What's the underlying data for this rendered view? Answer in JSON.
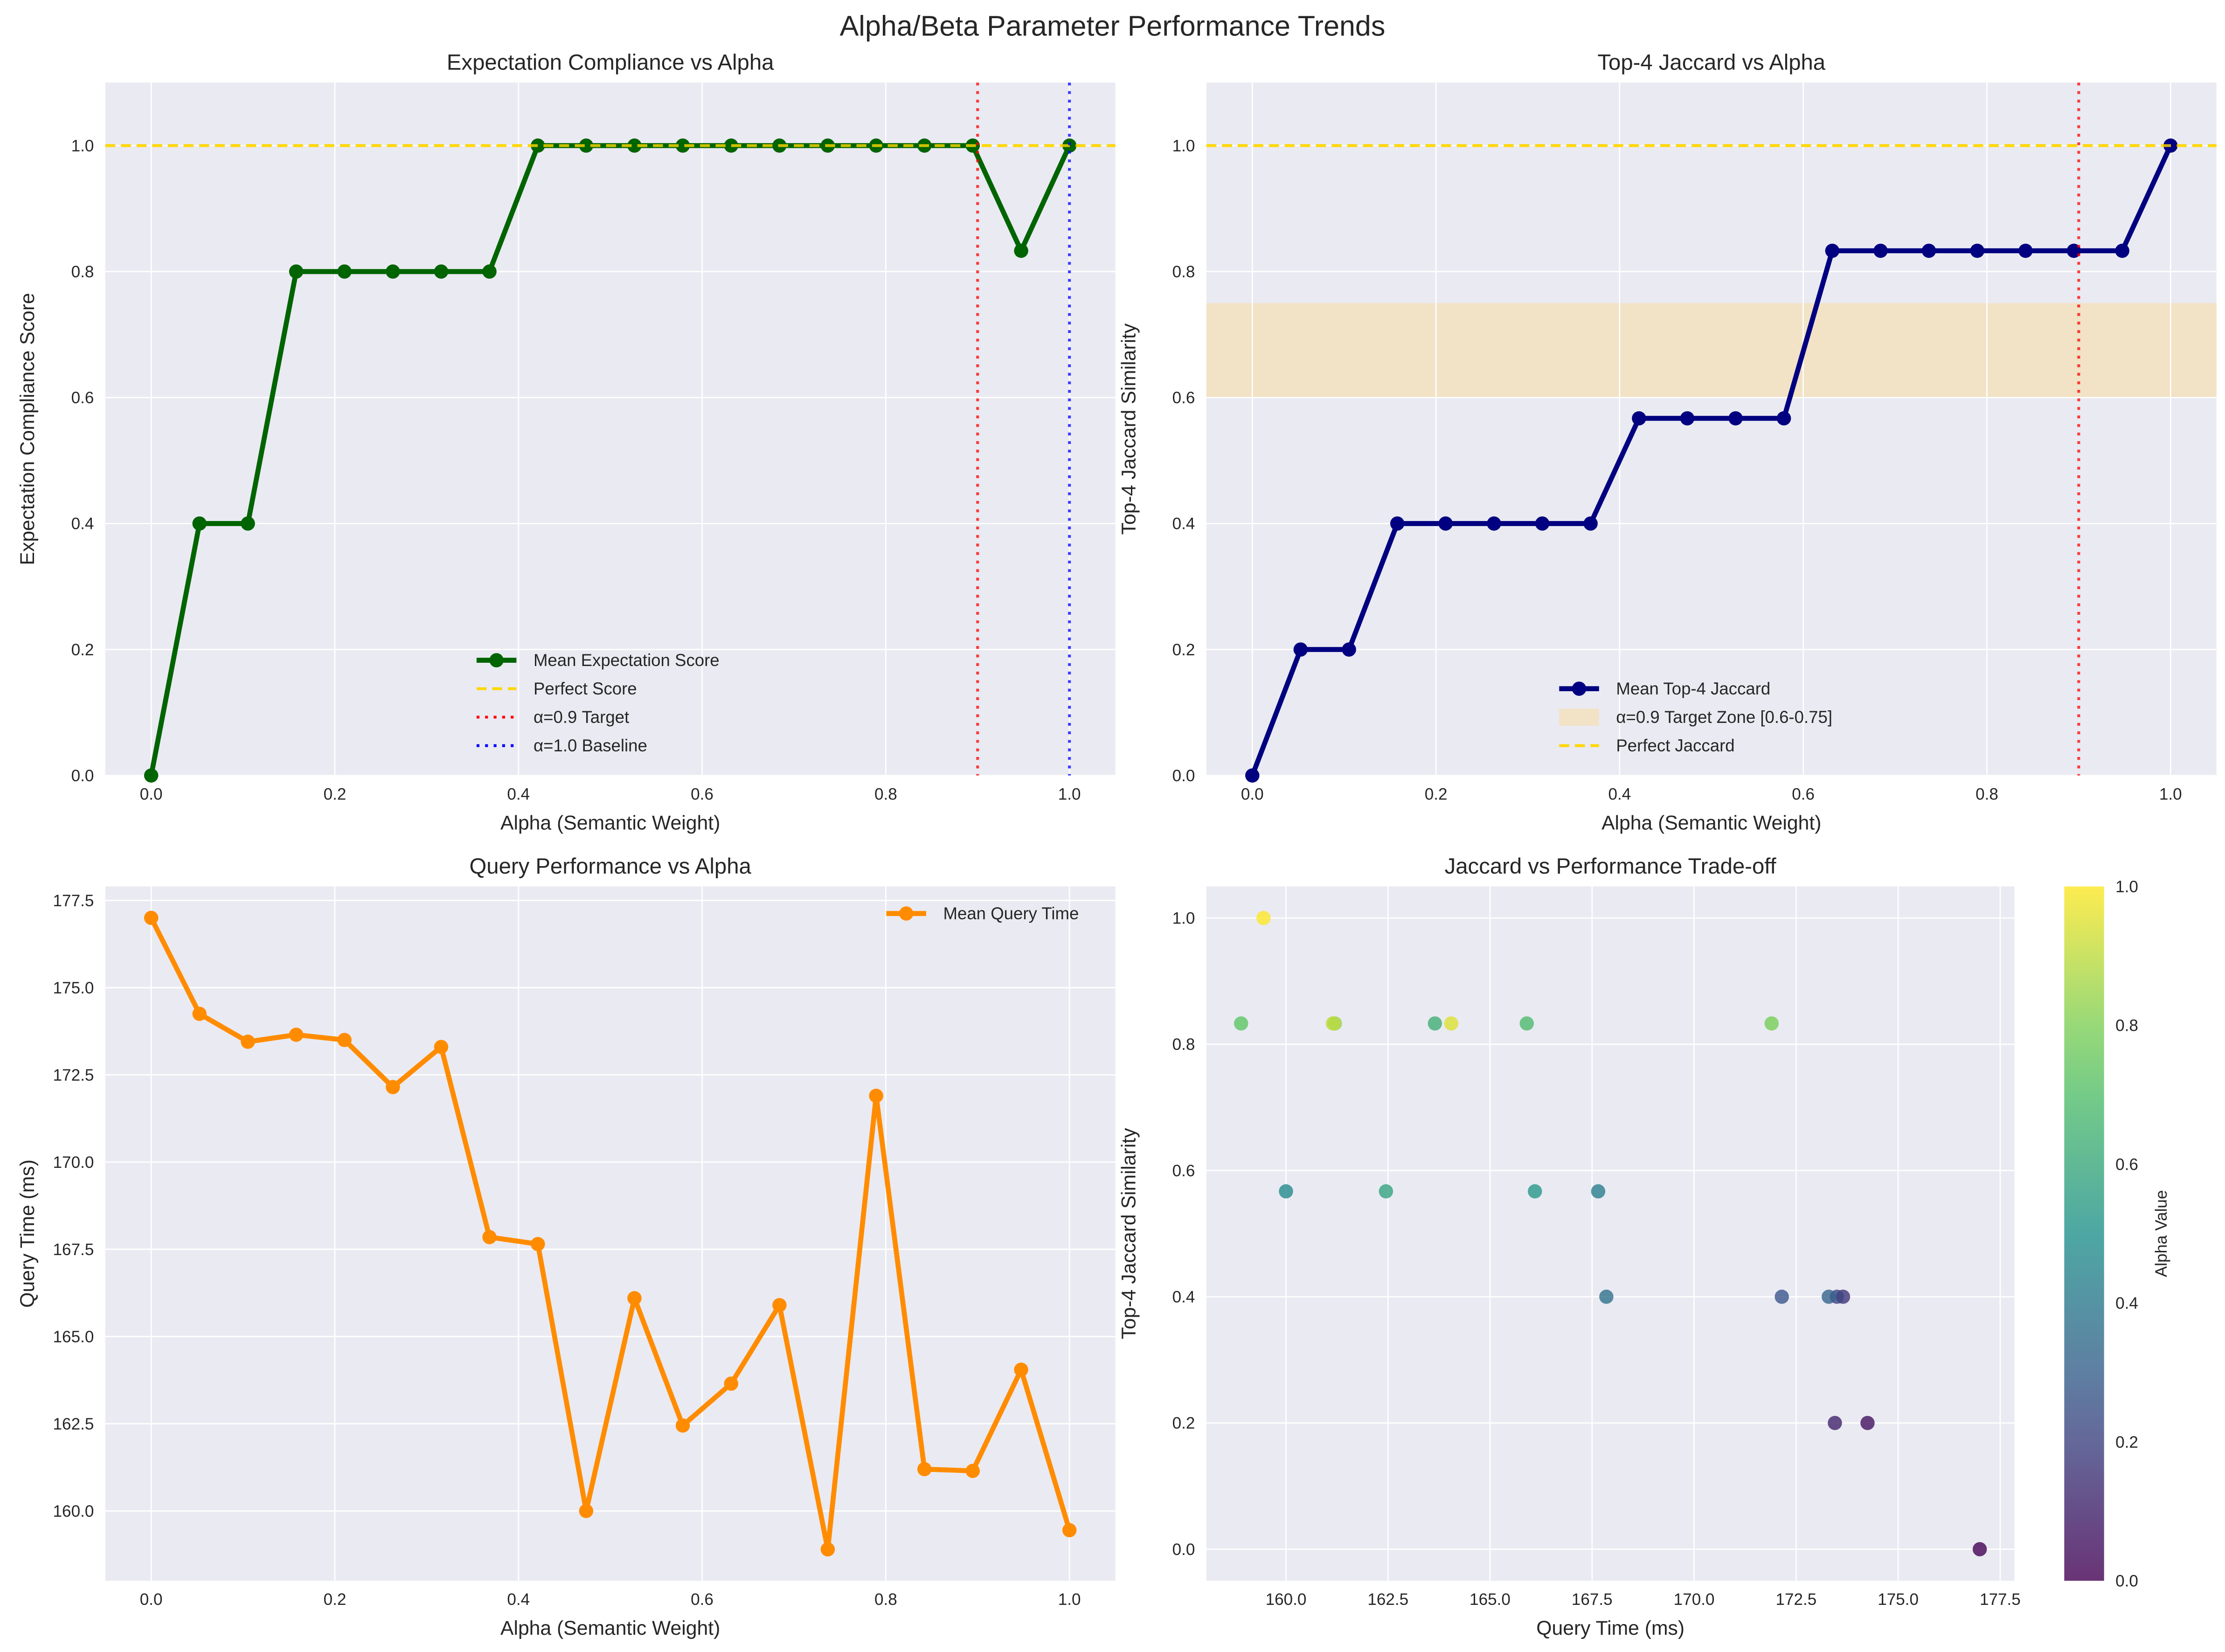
{
  "suptitle": "Alpha/Beta Parameter Performance Trends",
  "chart_data": [
    {
      "type": "line",
      "title": "Expectation Compliance vs Alpha",
      "xlabel": "Alpha (Semantic Weight)",
      "ylabel": "Expectation Compliance Score",
      "xlim": [
        -0.05,
        1.05
      ],
      "ylim": [
        0,
        1.1
      ],
      "xticks": [
        "0.0",
        "0.2",
        "0.4",
        "0.6",
        "0.8",
        "1.0"
      ],
      "yticks": [
        "0.0",
        "0.2",
        "0.4",
        "0.6",
        "0.8",
        "1.0"
      ],
      "grid": true,
      "legend_placement": "lower-center",
      "x": [
        0.0,
        0.0526,
        0.1053,
        0.1579,
        0.2105,
        0.2632,
        0.3158,
        0.3684,
        0.4211,
        0.4737,
        0.5263,
        0.5789,
        0.6316,
        0.6842,
        0.7368,
        0.7895,
        0.8421,
        0.8947,
        0.9474,
        1.0
      ],
      "series": [
        {
          "name": "Mean Expectation Score",
          "color": "#006400",
          "values": [
            0.0,
            0.4,
            0.4,
            0.8,
            0.8,
            0.8,
            0.8,
            0.8,
            1.0,
            1.0,
            1.0,
            1.0,
            1.0,
            1.0,
            1.0,
            1.0,
            1.0,
            1.0,
            0.833,
            1.0
          ]
        }
      ],
      "hlines": [
        {
          "name": "Perfect Score",
          "y": 1.0,
          "color": "#FFD700",
          "style": "dashed"
        }
      ],
      "vlines": [
        {
          "name": "α=0.9 Target",
          "x": 0.9,
          "color": "#FF0000",
          "style": "dotted"
        },
        {
          "name": "α=1.0 Baseline",
          "x": 1.0,
          "color": "#0000FF",
          "style": "dotted"
        }
      ],
      "legend": [
        "Mean Expectation Score",
        "Perfect Score",
        "α=0.9 Target",
        "α=1.0 Baseline"
      ]
    },
    {
      "type": "line",
      "title": "Top-4 Jaccard vs Alpha",
      "xlabel": "Alpha (Semantic Weight)",
      "ylabel": "Top-4 Jaccard Similarity",
      "xlim": [
        -0.05,
        1.05
      ],
      "ylim": [
        0,
        1.1
      ],
      "xticks": [
        "0.0",
        "0.2",
        "0.4",
        "0.6",
        "0.8",
        "1.0"
      ],
      "yticks": [
        "0.0",
        "0.2",
        "0.4",
        "0.6",
        "0.8",
        "1.0"
      ],
      "grid": true,
      "legend_placement": "lower-center",
      "x": [
        0.0,
        0.0526,
        0.1053,
        0.1579,
        0.2105,
        0.2632,
        0.3158,
        0.3684,
        0.4211,
        0.4737,
        0.5263,
        0.5789,
        0.6316,
        0.6842,
        0.7368,
        0.7895,
        0.8421,
        0.8947,
        0.9474,
        1.0
      ],
      "series": [
        {
          "name": "Mean Top-4 Jaccard",
          "color": "#000080",
          "values": [
            0.0,
            0.2,
            0.2,
            0.4,
            0.4,
            0.4,
            0.4,
            0.4,
            0.567,
            0.567,
            0.567,
            0.567,
            0.833,
            0.833,
            0.833,
            0.833,
            0.833,
            0.833,
            0.833,
            1.0
          ]
        }
      ],
      "spans": [
        {
          "name": "α=0.9 Target Zone [0.6-0.75]",
          "y0": 0.6,
          "y1": 0.75,
          "color": "#F5DEB3"
        }
      ],
      "hlines": [
        {
          "name": "Perfect Jaccard",
          "y": 1.0,
          "color": "#FFD700",
          "style": "dashed"
        }
      ],
      "vlines": [
        {
          "name": "",
          "x": 0.9,
          "color": "#FF0000",
          "style": "dotted"
        }
      ],
      "legend": [
        "Mean Top-4 Jaccard",
        "α=0.9 Target Zone [0.6-0.75]",
        "Perfect Jaccard"
      ]
    },
    {
      "type": "line",
      "title": "Query Performance vs Alpha",
      "xlabel": "Alpha (Semantic Weight)",
      "ylabel": "Query Time (ms)",
      "xlim": [
        -0.05,
        1.05
      ],
      "ylim": [
        158.0,
        177.9
      ],
      "xticks": [
        "0.0",
        "0.2",
        "0.4",
        "0.6",
        "0.8",
        "1.0"
      ],
      "yticks": [
        "160.0",
        "162.5",
        "165.0",
        "167.5",
        "170.0",
        "172.5",
        "175.0",
        "177.5"
      ],
      "grid": true,
      "legend_placement": "upper-right",
      "x": [
        0.0,
        0.0526,
        0.1053,
        0.1579,
        0.2105,
        0.2632,
        0.3158,
        0.3684,
        0.4211,
        0.4737,
        0.5263,
        0.5789,
        0.6316,
        0.6842,
        0.7368,
        0.7895,
        0.8421,
        0.8947,
        0.9474,
        1.0
      ],
      "series": [
        {
          "name": "Mean Query Time",
          "color": "#FF8C00",
          "values": [
            177.0,
            174.25,
            173.45,
            173.65,
            173.5,
            172.15,
            173.3,
            167.85,
            167.65,
            160.0,
            166.1,
            162.45,
            163.65,
            165.9,
            158.9,
            171.9,
            161.2,
            161.15,
            164.05,
            159.45
          ]
        }
      ],
      "legend": [
        "Mean Query Time"
      ]
    },
    {
      "type": "scatter",
      "title": "Jaccard vs Performance Trade-off",
      "xlabel": "Query Time (ms)",
      "ylabel": "Top-4 Jaccard Similarity",
      "xlim": [
        158.05,
        177.85
      ],
      "ylim": [
        -0.05,
        1.05
      ],
      "xticks": [
        "160.0",
        "162.5",
        "165.0",
        "167.5",
        "170.0",
        "172.5",
        "175.0",
        "177.5"
      ],
      "yticks": [
        "0.0",
        "0.2",
        "0.4",
        "0.6",
        "0.8",
        "1.0"
      ],
      "grid": true,
      "colorbar": {
        "label": "Alpha Value",
        "range": [
          0,
          1
        ],
        "ticks": [
          "0.0",
          "0.2",
          "0.4",
          "0.6",
          "0.8",
          "1.0"
        ],
        "colormap": "viridis"
      },
      "points": {
        "x": [
          177.0,
          174.25,
          173.45,
          173.65,
          173.5,
          172.15,
          173.3,
          167.85,
          167.65,
          160.0,
          166.1,
          162.45,
          163.65,
          165.9,
          158.9,
          171.9,
          161.2,
          161.15,
          164.05,
          159.45
        ],
        "y": [
          0.0,
          0.2,
          0.2,
          0.4,
          0.4,
          0.4,
          0.4,
          0.4,
          0.567,
          0.567,
          0.567,
          0.567,
          0.833,
          0.833,
          0.833,
          0.833,
          0.833,
          0.833,
          0.833,
          1.0
        ],
        "c": [
          0.0,
          0.0526,
          0.1053,
          0.1579,
          0.2105,
          0.2632,
          0.3158,
          0.3684,
          0.4211,
          0.4737,
          0.5263,
          0.5789,
          0.6316,
          0.6842,
          0.7368,
          0.7895,
          0.8421,
          0.8947,
          0.9474,
          1.0
        ]
      }
    }
  ]
}
